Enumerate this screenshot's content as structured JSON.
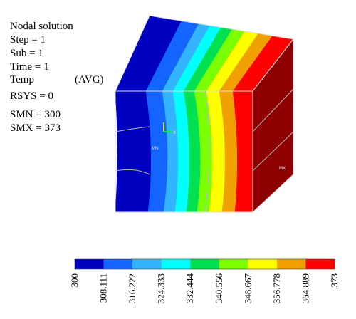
{
  "info": {
    "title": "Nodal solution",
    "lines": [
      "Step = 1",
      "Sub = 1",
      "Time = 1",
      "Temp",
      "RSYS = 0",
      "SMN = 300",
      "SMX = 373"
    ],
    "avg": "(AVG)"
  },
  "markers": {
    "mn": "MN",
    "mx": "MX",
    "axis": "X"
  },
  "legend": {
    "colors": [
      "#0000c0",
      "#1464ff",
      "#32b4ff",
      "#00ffff",
      "#00e050",
      "#7cff00",
      "#ffff00",
      "#f0a000",
      "#ff0000"
    ],
    "ticks": [
      300,
      308.111,
      316.222,
      324.333,
      332.444,
      340.556,
      348.667,
      356.778,
      364.889,
      373
    ]
  }
}
